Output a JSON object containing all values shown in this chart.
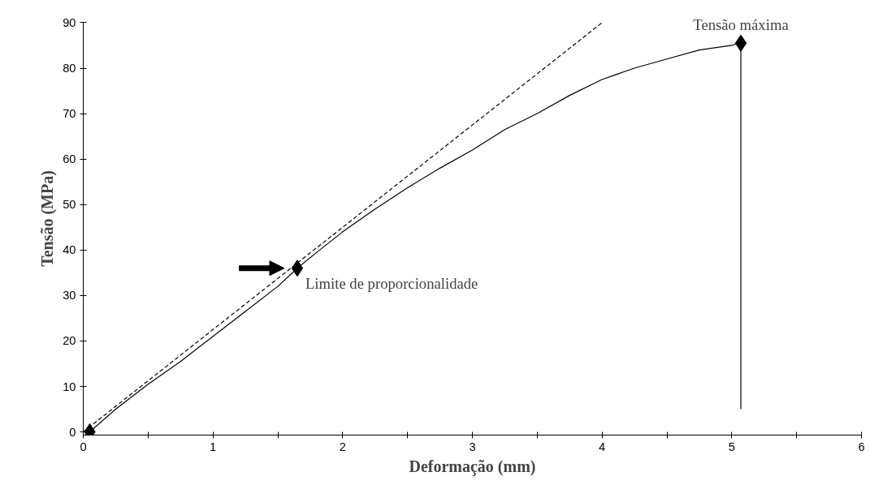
{
  "chart_data": {
    "type": "line",
    "xlabel": "Deformação (mm)",
    "ylabel": "Tensão (MPa)",
    "xlim": [
      0,
      6
    ],
    "ylim": [
      -0.7,
      90
    ],
    "xticks": [
      0,
      {
        "value": 0.5,
        "label": null
      },
      1,
      {
        "value": 1.5,
        "label": null
      },
      2,
      {
        "value": 2.5,
        "label": null
      },
      3,
      {
        "value": 3.5,
        "label": null
      },
      4,
      {
        "value": 4.5,
        "label": null
      },
      5,
      {
        "value": 5.5,
        "label": null
      },
      6
    ],
    "yticks": [
      0,
      10,
      20,
      30,
      40,
      50,
      60,
      70,
      80,
      90
    ],
    "grid": false,
    "series": [
      {
        "color": "#000000",
        "line_style": "solid",
        "x": [
          0.05,
          0.25,
          0.5,
          0.75,
          1,
          1.25,
          1.5,
          1.65,
          1.8,
          2,
          2.25,
          2.5,
          2.75,
          3,
          3.25,
          3.5,
          3.75,
          4,
          4.25,
          4.5,
          4.75,
          5,
          5.05
        ],
        "values": [
          0,
          5,
          10.5,
          15.5,
          21,
          26.5,
          32,
          36,
          39.5,
          44,
          49,
          53.7,
          58,
          62,
          66.5,
          70,
          74,
          77.5,
          80,
          82,
          84,
          85,
          85.5
        ]
      },
      {
        "color": "#000000",
        "line_style": "dashed",
        "x": [
          0,
          4
        ],
        "values": [
          0,
          90
        ]
      },
      {
        "type": "scatter",
        "color": "#000000",
        "marker": "diamond",
        "x": [
          0.05,
          1.65,
          5.07
        ],
        "values": [
          0,
          36,
          85.5
        ],
        "errors": [
          null,
          null,
          [
            5,
            85.5
          ]
        ]
      }
    ],
    "annotations": [
      {
        "text": "Limite de proporcionalidade",
        "x": 1.65,
        "y": 36
      },
      {
        "text": "Tensão máxima",
        "x": 5.07,
        "y": 85.5
      }
    ]
  }
}
